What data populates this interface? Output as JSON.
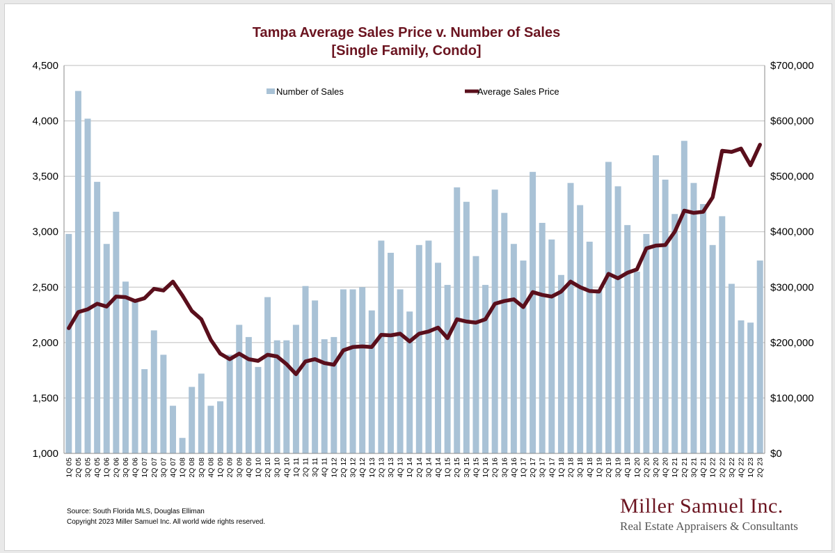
{
  "chart_data": {
    "type": "bar+line",
    "title_line1": "Tampa Average Sales Price v. Number of Sales",
    "title_line2": "[Single Family, Condo]",
    "categories": [
      "1Q 05",
      "2Q 05",
      "3Q 05",
      "4Q 05",
      "1Q 06",
      "2Q 06",
      "3Q 06",
      "4Q 06",
      "1Q 07",
      "2Q 07",
      "3Q 07",
      "4Q 07",
      "1Q 08",
      "2Q 08",
      "3Q 08",
      "4Q 08",
      "1Q 09",
      "2Q 09",
      "3Q 09",
      "4Q 09",
      "1Q 10",
      "2Q 10",
      "3Q 10",
      "4Q 10",
      "1Q 11",
      "2Q 11",
      "3Q 11",
      "4Q 11",
      "1Q 12",
      "2Q 12",
      "3Q 12",
      "4Q 12",
      "1Q 13",
      "2Q 13",
      "3Q 13",
      "4Q 13",
      "1Q 14",
      "2Q 14",
      "3Q 14",
      "4Q 14",
      "1Q 15",
      "2Q 15",
      "3Q 15",
      "4Q 15",
      "1Q 16",
      "2Q 16",
      "3Q 16",
      "4Q 16",
      "1Q 17",
      "2Q 17",
      "3Q 17",
      "4Q 17",
      "1Q 18",
      "2Q 18",
      "3Q 18",
      "4Q 18",
      "1Q 19",
      "2Q 19",
      "3Q 19",
      "4Q 19",
      "1Q 20",
      "2Q 20",
      "3Q 20",
      "4Q 20",
      "1Q 21",
      "2Q 21",
      "3Q 21",
      "4Q 21",
      "1Q 22",
      "2Q 22",
      "3Q 22",
      "4Q 22",
      "1Q 23",
      "2Q 23"
    ],
    "series": [
      {
        "name": "Number of Sales",
        "axis": "left",
        "kind": "bar",
        "color": "#a9c2d6",
        "values": [
          2980,
          4270,
          4020,
          3450,
          2890,
          3180,
          2550,
          2390,
          1760,
          2110,
          1890,
          1430,
          1140,
          1600,
          1720,
          1430,
          1470,
          1890,
          2160,
          2050,
          1780,
          2410,
          2020,
          2020,
          2160,
          2510,
          2380,
          2030,
          2050,
          2480,
          2480,
          2500,
          2290,
          2920,
          2810,
          2480,
          2280,
          2880,
          2920,
          2720,
          2520,
          3400,
          3270,
          2780,
          2520,
          3380,
          3170,
          2890,
          2740,
          3540,
          3080,
          2930,
          2610,
          3440,
          3240,
          2910,
          2480,
          3630,
          3410,
          3060,
          2640,
          2980,
          3690,
          3470,
          3160,
          3820,
          3440,
          3250,
          2880,
          3140,
          2530,
          2200,
          2180,
          2740
        ]
      },
      {
        "name": "Average Sales Price",
        "axis": "right",
        "kind": "line",
        "color": "#5a0f1c",
        "values": [
          226000,
          255000,
          260000,
          270000,
          265000,
          283000,
          282000,
          275000,
          280000,
          297000,
          294000,
          310000,
          285000,
          257000,
          242000,
          205000,
          180000,
          170000,
          180000,
          170000,
          167000,
          178000,
          175000,
          161000,
          143000,
          166000,
          170000,
          163000,
          160000,
          186000,
          192000,
          193000,
          192000,
          214000,
          213000,
          216000,
          202000,
          216000,
          220000,
          227000,
          208000,
          242000,
          238000,
          236000,
          242000,
          270000,
          275000,
          278000,
          264000,
          291000,
          286000,
          283000,
          292000,
          310000,
          300000,
          293000,
          292000,
          324000,
          316000,
          326000,
          332000,
          370000,
          375000,
          376000,
          400000,
          438000,
          434000,
          436000,
          462000,
          546000,
          544000,
          550000,
          520000,
          557000
        ]
      }
    ],
    "y_left": {
      "min": 1000,
      "max": 4500,
      "ticks": [
        "1,000",
        "1,500",
        "2,000",
        "2,500",
        "3,000",
        "3,500",
        "4,000",
        "4,500"
      ]
    },
    "y_right": {
      "min": 0,
      "max": 700000,
      "ticks": [
        "$0",
        "$100,000",
        "$200,000",
        "$300,000",
        "$400,000",
        "$500,000",
        "$600,000",
        "$700,000"
      ]
    },
    "grid": true,
    "legend_position": "top-center"
  },
  "footer": {
    "source": "Source: South Florida MLS, Douglas Elliman",
    "copyright": "Copyright 2023 Miller Samuel Inc.  All world wide rights reserved."
  },
  "brand": {
    "name": "Miller Samuel Inc.",
    "tagline": "Real Estate Appraisers & Consultants"
  }
}
